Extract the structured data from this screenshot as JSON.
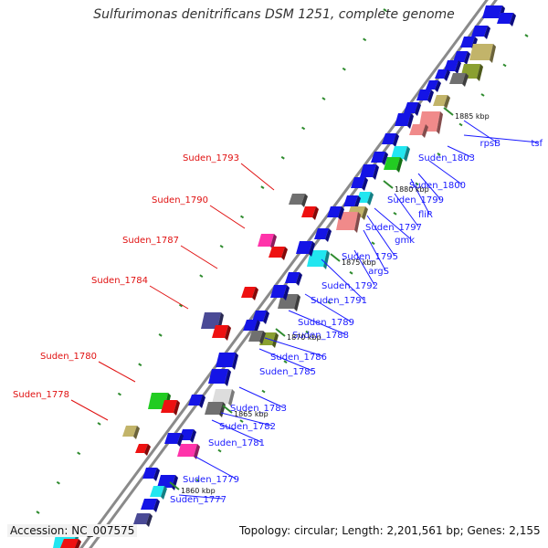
{
  "title": "Sulfurimonas denitrificans DSM 1251, complete genome",
  "accession": "Accession: NC_007575",
  "summary": "Topology: circular; Length: 2,201,561 bp; Genes: 2,155",
  "colors": {
    "backbone": "#8a8a8a",
    "label_right": "#1a1aff",
    "label_left": "#e01010",
    "tick": "#2e8b2e",
    "blue": "#1414e6",
    "red": "#ee1111",
    "cyan": "#22e6f0",
    "green": "#22cc22",
    "olive": "#8aa030",
    "pink": "#ff33aa",
    "salmon": "#f08a8a",
    "grey": "#707070",
    "purple": "#4a4a96",
    "khaki": "#c2b46a"
  },
  "scale_labels": [
    "1860 kbp",
    "1865 kbp",
    "1870 kbp",
    "1875 kbp",
    "1880 kbp",
    "1885 kbp"
  ],
  "right_labels": [
    "Suden_1803",
    "rpsB",
    "tsf",
    "Suden_1800",
    "Suden_1799",
    "fliR",
    "Suden_1797",
    "gmk",
    "Suden_1795",
    "argS",
    "Suden_1792",
    "Suden_1791",
    "Suden_1789",
    "Suden_1788",
    "Suden_1786",
    "Suden_1785",
    "Suden_1783",
    "Suden_1782",
    "Suden_1781",
    "Suden_1779",
    "Suden_1777"
  ],
  "left_labels": [
    "Suden_1793",
    "Suden_1790",
    "Suden_1787",
    "Suden_1784",
    "Suden_1780",
    "Suden_1778"
  ]
}
